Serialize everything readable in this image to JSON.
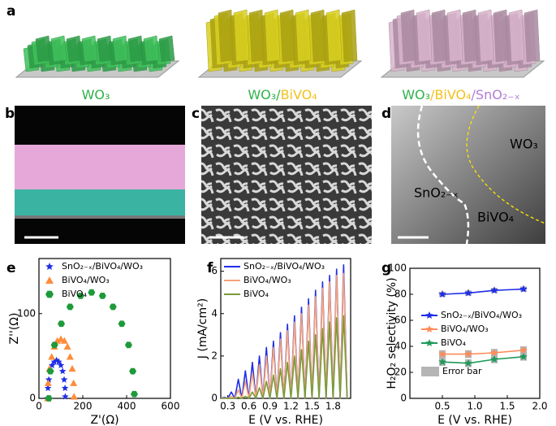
{
  "panels": [
    {
      "label": "a",
      "captions": [
        [
          {
            "text": "WO₃",
            "color": "#2fb24a"
          }
        ],
        [
          {
            "text": "WO₃",
            "color": "#2fb24a"
          },
          {
            "text": "/",
            "color": "#2fb24a"
          },
          {
            "text": "BiVO₄",
            "color": "#f2c21b"
          }
        ],
        [
          {
            "text": "WO₃",
            "color": "#2fb24a"
          },
          {
            "text": "/",
            "color": "#f2c21b"
          },
          {
            "text": "BiVO₄",
            "color": "#f2c21b"
          },
          {
            "text": "/",
            "color": "#b07cd6"
          },
          {
            "text": "SnO₂₋ₓ",
            "color": "#b07cd6"
          }
        ]
      ]
    },
    {
      "label": "b"
    },
    {
      "label": "c"
    },
    {
      "label": "d",
      "texts": [
        {
          "text": "SnO₂₋ₓ",
          "color": "#f3e4b0"
        },
        {
          "text": "BiVO₄",
          "color": "#ffe400"
        },
        {
          "text": "WO₃",
          "color": "#2fb24a"
        }
      ]
    }
  ],
  "chart_data": [
    {
      "type": "scatter",
      "panel": "e",
      "x_label": "Z'(Ω)",
      "y_label": "Z''(Ω)",
      "xlim": [
        0,
        600
      ],
      "xticks": [
        0,
        200,
        400,
        600
      ],
      "ylim": [
        0,
        165
      ],
      "yticks": [
        0,
        100
      ],
      "legend": "upper left",
      "series": [
        {
          "name": "SnO₂₋ₓ/BiVO₄/WO₃",
          "color": "#1f2ee6",
          "marker": "star",
          "x": [
            40,
            41,
            45,
            52,
            60,
            70,
            80,
            90,
            100,
            108,
            115,
            119,
            120
          ],
          "values": [
            0,
            12,
            22,
            32,
            39,
            43,
            45,
            43,
            39,
            32,
            22,
            12,
            2
          ]
        },
        {
          "name": "BiVO₄/WO₃",
          "color": "#ff8c3a",
          "marker": "triangle",
          "x": [
            40,
            42,
            48,
            58,
            70,
            84,
            100,
            116,
            130,
            142,
            152,
            158,
            160
          ],
          "values": [
            0,
            18,
            35,
            49,
            61,
            68,
            70,
            68,
            61,
            49,
            35,
            18,
            2
          ]
        },
        {
          "name": "BiVO₄",
          "color": "#1e9a3a",
          "marker": "hexagon",
          "x": [
            45,
            52,
            71,
            102,
            142,
            190,
            240,
            290,
            338,
            378,
            409,
            428,
            435
          ],
          "values": [
            0,
            32,
            63,
            88,
            108,
            121,
            125,
            121,
            108,
            88,
            63,
            32,
            5
          ]
        }
      ]
    },
    {
      "type": "line",
      "panel": "f",
      "x_label": "E (V vs. RHE)",
      "y_label": "J (mA/cm²)",
      "xlim": [
        0.2,
        2.05
      ],
      "xticks": [
        0.3,
        0.6,
        0.9,
        1.2,
        1.5,
        1.8
      ],
      "ylim": [
        0,
        6.6
      ],
      "yticks": [
        0,
        2,
        4,
        6
      ],
      "legend": "upper left",
      "x": [
        0.2,
        0.25,
        0.3,
        0.35,
        0.4,
        0.45,
        0.5,
        0.55,
        0.6,
        0.65,
        0.7,
        0.75,
        0.8,
        0.85,
        0.9,
        0.95,
        1.0,
        1.05,
        1.1,
        1.15,
        1.2,
        1.25,
        1.3,
        1.35,
        1.4,
        1.45,
        1.5,
        1.55,
        1.6,
        1.65,
        1.7,
        1.75,
        1.8,
        1.85,
        1.9,
        1.95,
        2.0
      ],
      "series": [
        {
          "name": "SnO₂₋ₓ/BiVO₄/WO₃",
          "color": "#1f2ee6",
          "values": [
            0,
            0.05,
            0,
            0.3,
            0,
            0.9,
            0,
            1.3,
            0,
            1.7,
            0,
            2.0,
            0,
            2.4,
            0,
            2.7,
            0,
            3.1,
            0,
            3.5,
            0,
            3.9,
            0,
            4.3,
            0,
            4.7,
            0,
            5.1,
            0,
            5.5,
            0,
            5.8,
            0,
            6.1,
            0,
            6.3,
            0
          ]
        },
        {
          "name": "BiVO₄/WO₃",
          "color": "#f5a37a",
          "values": [
            0,
            0.02,
            0,
            0.1,
            0,
            0.4,
            0,
            0.8,
            0,
            1.2,
            0,
            1.6,
            0,
            2.0,
            0,
            2.4,
            0,
            2.8,
            0,
            3.2,
            0,
            3.6,
            0,
            4.0,
            0,
            4.4,
            0,
            4.8,
            0,
            5.2,
            0,
            5.5,
            0,
            5.8,
            0,
            5.9,
            0
          ]
        },
        {
          "name": "BiVO₄",
          "color": "#7a9a3a",
          "values": [
            0,
            0,
            0,
            0,
            0,
            0.05,
            0,
            0.1,
            0,
            0.3,
            0,
            0.5,
            0,
            0.8,
            0,
            1.1,
            0,
            1.4,
            0,
            1.7,
            0,
            2.0,
            0,
            2.3,
            0,
            2.7,
            0,
            3.0,
            0,
            3.3,
            0,
            3.6,
            0,
            3.8,
            0,
            3.9,
            0
          ]
        }
      ]
    },
    {
      "type": "line",
      "panel": "g",
      "x_label": "E (V vs. RHE)",
      "y_label": "H₂O₂ selectivity (%)",
      "xlim": [
        0,
        2
      ],
      "xticks": [
        {
          "value": 0.5,
          "label": "0.5"
        },
        {
          "value": 1,
          "label": "1.0"
        },
        {
          "value": 1.5,
          "label": "1.5"
        },
        {
          "value": 2,
          "label": "2.0"
        }
      ],
      "ylim": [
        0,
        100
      ],
      "yticks": [
        0,
        20,
        40,
        60,
        80,
        100
      ],
      "legend": "center",
      "error_label": "Error bar",
      "error_color": "#b5b5b5",
      "x": [
        0.5,
        0.9,
        1.3,
        1.75
      ],
      "series": [
        {
          "name": "SnO₂₋ₓ/BiVO₄/WO₃",
          "color": "#1f2ee6",
          "marker": "star",
          "values": [
            80,
            81,
            83,
            84
          ],
          "errors": [
            2,
            2,
            2,
            2
          ]
        },
        {
          "name": "BiVO₄/WO₃",
          "color": "#ff8c5a",
          "marker": "star",
          "values": [
            34,
            34,
            35,
            37
          ],
          "errors": [
            3,
            3,
            3,
            3
          ]
        },
        {
          "name": "BiVO₄",
          "color": "#1e9a5a",
          "marker": "star",
          "values": [
            28,
            27,
            30,
            32
          ],
          "errors": [
            3,
            3,
            3,
            3
          ]
        }
      ]
    }
  ]
}
